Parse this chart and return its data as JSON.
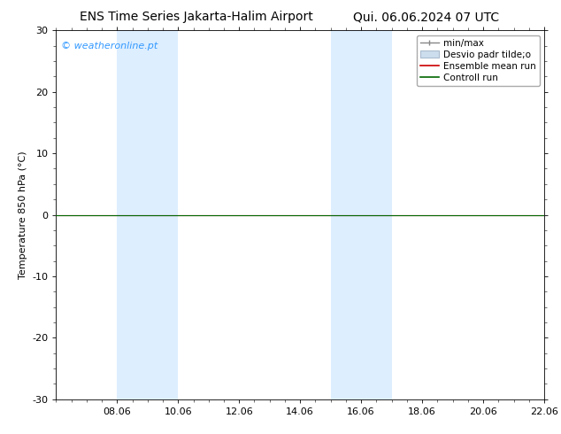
{
  "title_left": "ENS Time Series Jakarta-Halim Airport",
  "title_right": "Qui. 06.06.2024 07 UTC",
  "ylabel": "Temperature 850 hPa (°C)",
  "watermark": "© weatheronline.pt",
  "watermark_color": "#3399ff",
  "xtick_labels": [
    "08.06",
    "10.06",
    "12.06",
    "14.06",
    "16.06",
    "18.06",
    "20.06",
    "22.06"
  ],
  "xtick_positions": [
    2,
    4,
    6,
    8,
    10,
    12,
    14,
    16
  ],
  "ylim": [
    -30,
    30
  ],
  "ytick_positions": [
    -30,
    -20,
    -10,
    0,
    10,
    20,
    30
  ],
  "ytick_labels": [
    "-30",
    "-20",
    "-10",
    "0",
    "10",
    "20",
    "30"
  ],
  "shaded_bands": [
    {
      "x_start": 2.0,
      "x_end": 4.0
    },
    {
      "x_start": 9.0,
      "x_end": 11.0
    }
  ],
  "band_color": "#ddeeff",
  "line_color_green": "#006600",
  "line_color_red": "#cc0000",
  "legend_labels": [
    "min/max",
    "Desvio padr tilde;o",
    "Ensemble mean run",
    "Controll run"
  ],
  "background_color": "#ffffff",
  "plot_bg_color": "#ffffff",
  "font_size": 8,
  "title_font_size": 10
}
